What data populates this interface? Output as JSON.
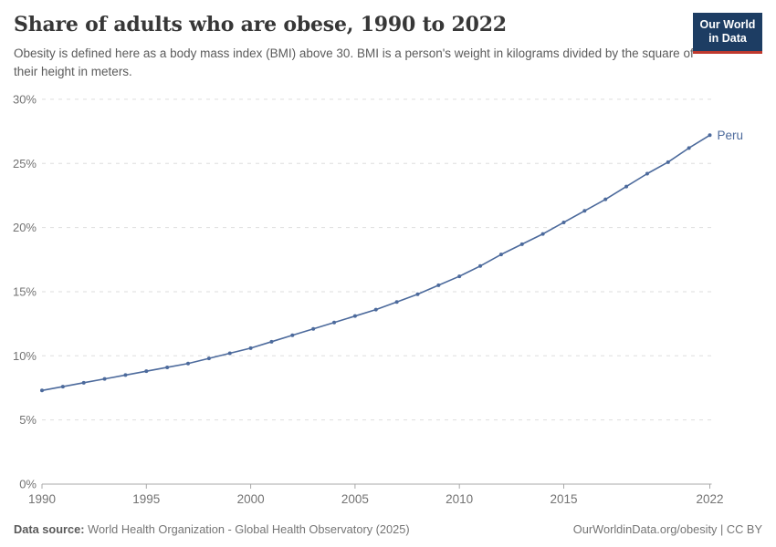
{
  "header": {
    "title": "Share of adults who are obese, 1990 to 2022",
    "subtitle": "Obesity is defined here as a body mass index (BMI) above 30. BMI is a person's weight in kilograms divided by the square of their height in meters.",
    "logo": {
      "line1": "Our World",
      "line2": "in Data",
      "bg_color": "#1d3d63",
      "stripe_color": "#bf392e"
    }
  },
  "chart_data": {
    "type": "line",
    "title": "Share of adults who are obese, 1990 to 2022",
    "xlabel": "",
    "ylabel": "",
    "xlim": [
      1990,
      2022
    ],
    "ylim": [
      0,
      30
    ],
    "grid": "horizontal-dashed",
    "legend_position": "end-of-line-label",
    "x_ticks": [
      1990,
      1995,
      2000,
      2005,
      2010,
      2015,
      2022
    ],
    "y_ticks": [
      0,
      5,
      10,
      15,
      20,
      25,
      30
    ],
    "y_tick_suffix": "%",
    "colors": {
      "line": "#4c6a9c",
      "gridline": "#dedede",
      "axis": "#a8a8a8",
      "tick_label": "#737373"
    },
    "series": [
      {
        "name": "Peru",
        "end_label": "Peru",
        "x": [
          1990,
          1991,
          1992,
          1993,
          1994,
          1995,
          1996,
          1997,
          1998,
          1999,
          2000,
          2001,
          2002,
          2003,
          2004,
          2005,
          2006,
          2007,
          2008,
          2009,
          2010,
          2011,
          2012,
          2013,
          2014,
          2015,
          2016,
          2017,
          2018,
          2019,
          2020,
          2021,
          2022
        ],
        "values": [
          7.3,
          7.6,
          7.9,
          8.2,
          8.5,
          8.8,
          9.1,
          9.4,
          9.8,
          10.2,
          10.6,
          11.1,
          11.6,
          12.1,
          12.6,
          13.1,
          13.6,
          14.2,
          14.8,
          15.5,
          16.2,
          17.0,
          17.9,
          18.7,
          19.5,
          20.4,
          21.3,
          22.2,
          23.2,
          24.2,
          25.1,
          26.2,
          27.2
        ]
      }
    ]
  },
  "footer": {
    "data_source_label": "Data source:",
    "data_source_value": "World Health Organization - Global Health Observatory (2025)",
    "right_text": "OurWorldinData.org/obesity | CC BY"
  }
}
